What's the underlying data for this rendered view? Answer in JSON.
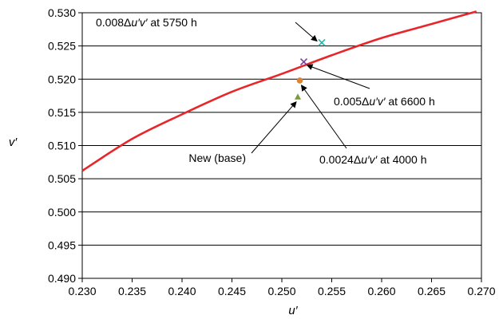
{
  "chart_data": {
    "type": "scatter",
    "title": "",
    "xlabel": "u′",
    "ylabel": "v′",
    "xlim": [
      0.23,
      0.27
    ],
    "ylim": [
      0.49,
      0.53
    ],
    "xticks": [
      "0.230",
      "0.235",
      "0.240",
      "0.245",
      "0.250",
      "0.255",
      "0.260",
      "0.265",
      "0.270"
    ],
    "yticks": [
      "0.490",
      "0.495",
      "0.500",
      "0.505",
      "0.510",
      "0.515",
      "0.520",
      "0.525",
      "0.530"
    ],
    "grid": "horizontal",
    "curve": {
      "color": "#e8262a",
      "points": [
        [
          0.23,
          0.5062
        ],
        [
          0.235,
          0.511
        ],
        [
          0.24,
          0.5147
        ],
        [
          0.245,
          0.5181
        ],
        [
          0.25,
          0.5208
        ],
        [
          0.255,
          0.5236
        ],
        [
          0.26,
          0.5262
        ],
        [
          0.265,
          0.5283
        ],
        [
          0.2695,
          0.5302
        ]
      ]
    },
    "points": [
      {
        "x": 0.254,
        "y": 0.5255,
        "marker": "x",
        "color": "#2ab1a7",
        "label_parts": [
          "0.008",
          "Δ",
          "u′v′",
          " at 5750 h"
        ]
      },
      {
        "x": 0.2522,
        "y": 0.5226,
        "marker": "x",
        "color": "#7a3fa0",
        "label_parts": [
          "0.005",
          "Δ",
          "u′v′",
          " at 6600 h"
        ]
      },
      {
        "x": 0.2518,
        "y": 0.5198,
        "marker": "circle",
        "color": "#d8833a",
        "label_parts": [
          "0.0024",
          "Δ",
          "u′v′",
          " at 4000 h"
        ]
      },
      {
        "x": 0.2516,
        "y": 0.5173,
        "marker": "triangle",
        "color": "#7a9a44",
        "label_parts": [
          "New (base)",
          "",
          "",
          ""
        ]
      }
    ]
  }
}
